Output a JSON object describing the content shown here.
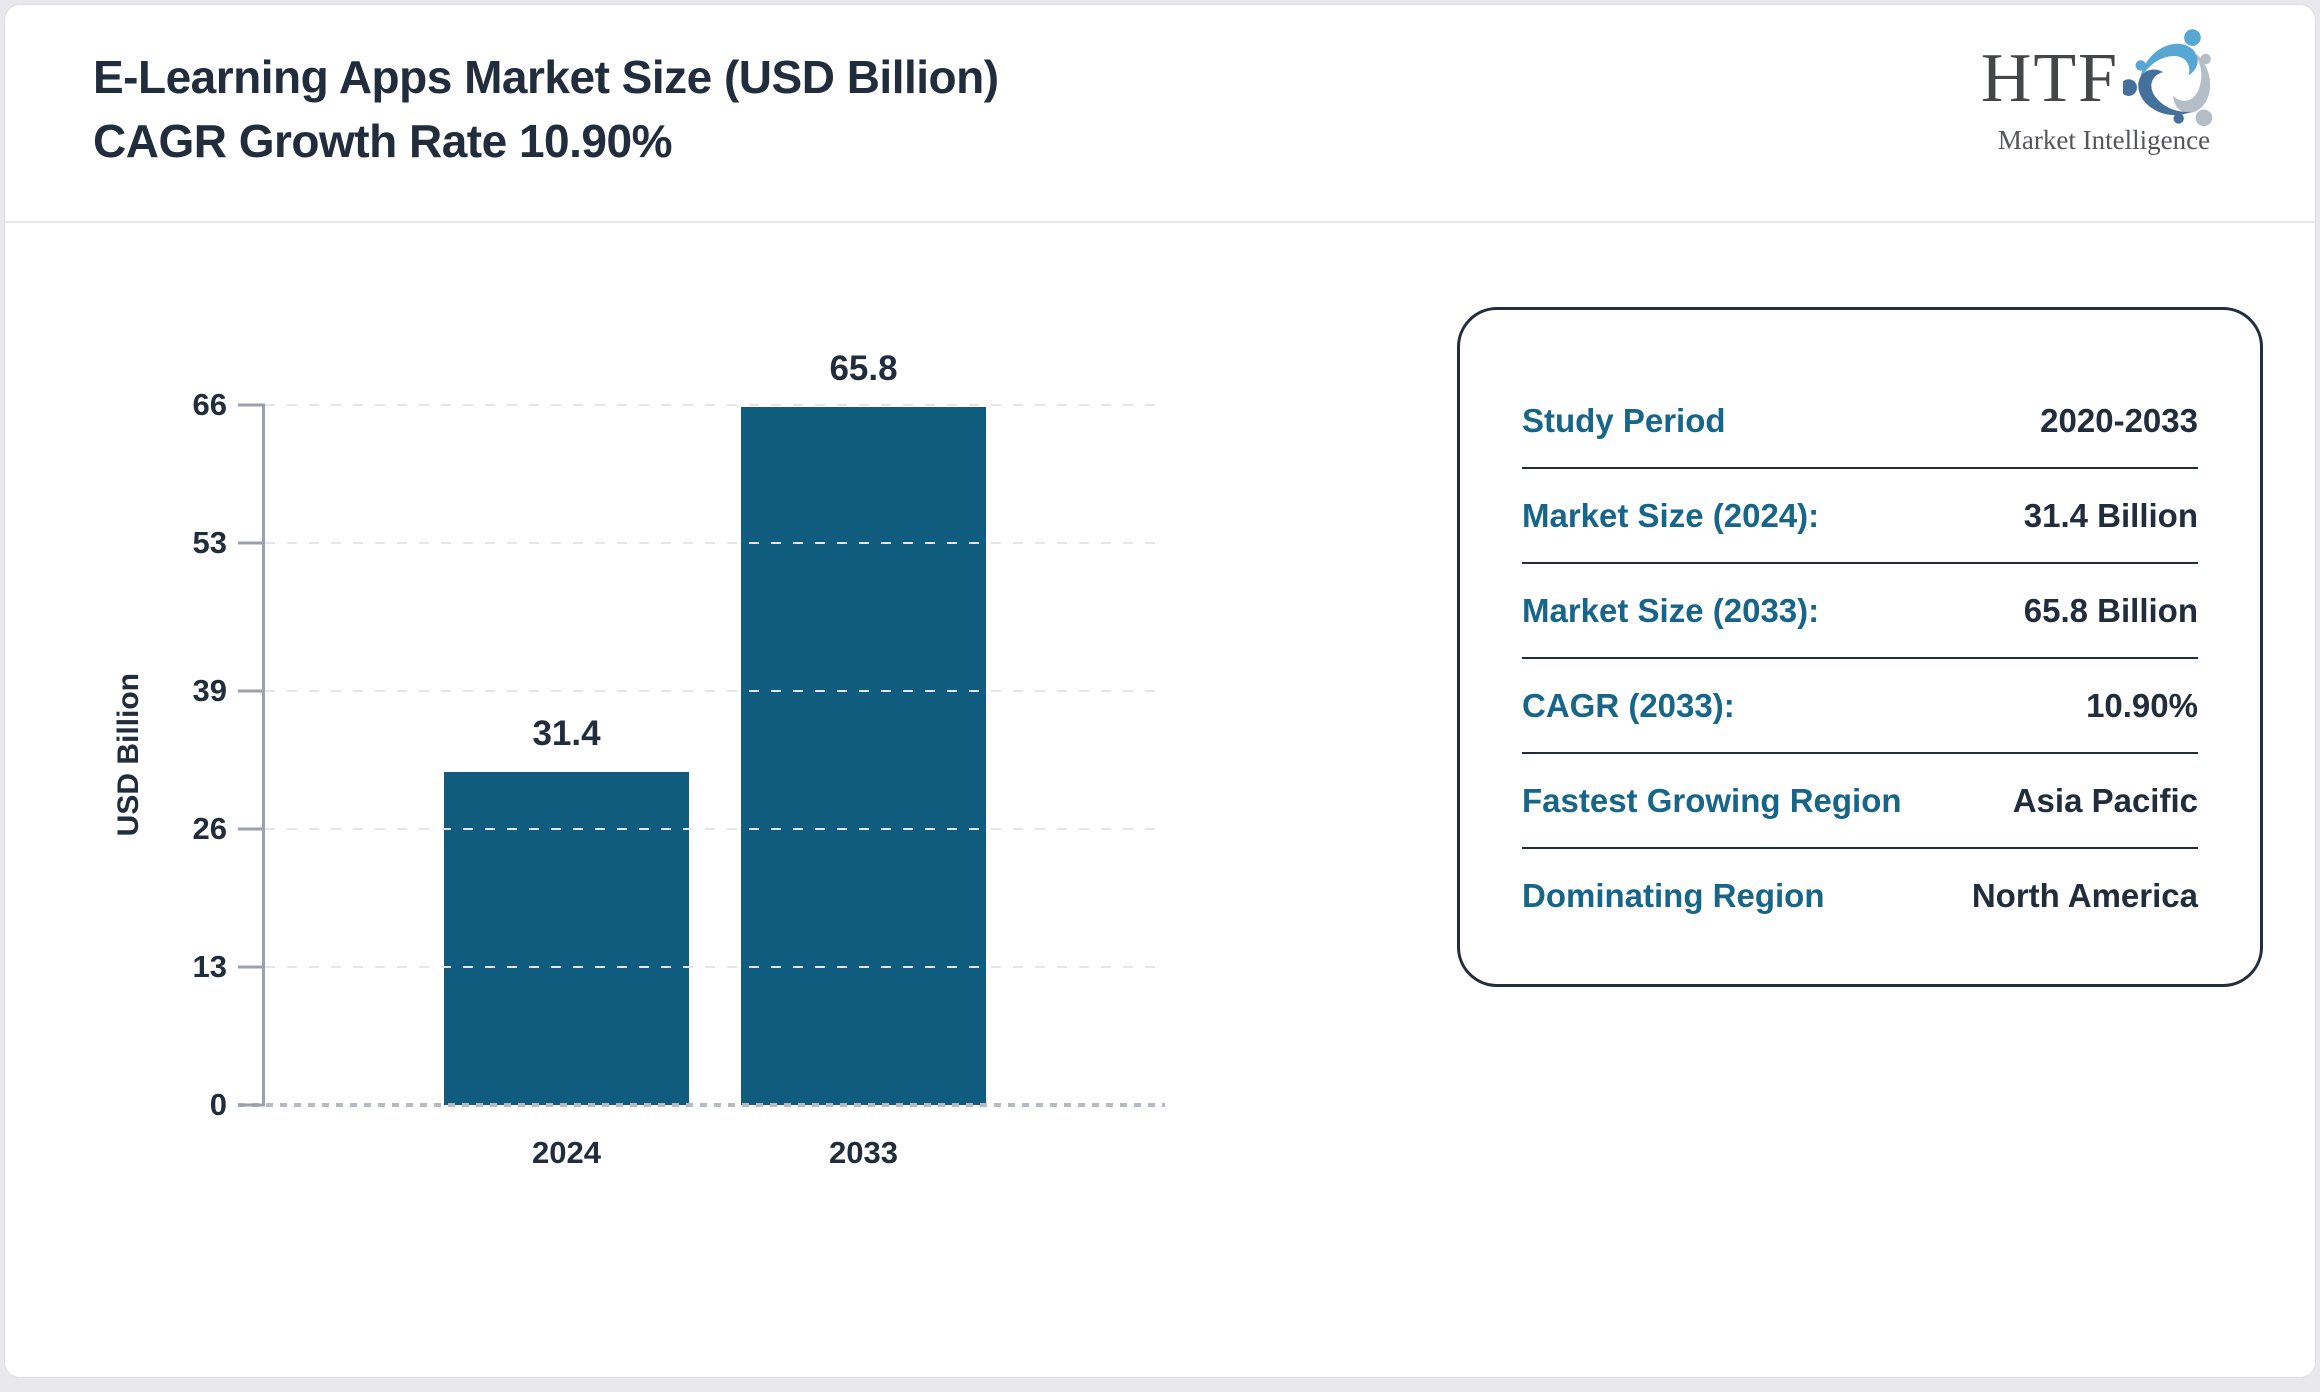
{
  "header": {
    "title_line1": "E-Learning Apps Market Size (USD Billion)",
    "title_line2": "CAGR Growth Rate 10.90%",
    "logo": {
      "name": "HTF",
      "tagline": "Market Intelligence",
      "icon": "htf-swirl-icon",
      "icon_colors": [
        "#57a7d4",
        "#b3bec9",
        "#44719b"
      ]
    }
  },
  "chart_data": {
    "type": "bar",
    "title": "E-Learning Apps Market Size (USD Billion) CAGR Growth Rate 10.90%",
    "categories": [
      "2024",
      "2033"
    ],
    "values": [
      31.4,
      65.8
    ],
    "xlabel": "",
    "ylabel": "USD Billion",
    "ylim": [
      0,
      66
    ],
    "yticks": [
      0,
      13,
      26,
      39,
      53,
      66
    ],
    "grid": "horizontal-dashed",
    "legend": "none",
    "bar_color": "#0f5c7f"
  },
  "panel": {
    "rows": [
      {
        "label": "Study Period",
        "value": "2020-2033"
      },
      {
        "label": "Market Size (2024):",
        "value": "31.4 Billion"
      },
      {
        "label": "Market Size (2033):",
        "value": "65.8 Billion"
      },
      {
        "label": "CAGR (2033):",
        "value": "10.90%"
      },
      {
        "label": "Fastest Growing Region",
        "value": "Asia Pacific"
      },
      {
        "label": "Dominating Region",
        "value": "North America"
      }
    ]
  },
  "colors": {
    "accent_teal": "#18658a",
    "text_navy": "#212c3c",
    "bar": "#0f5c7f",
    "axis_gray": "#9aa1ac",
    "gridline": "#e4e6ea"
  }
}
